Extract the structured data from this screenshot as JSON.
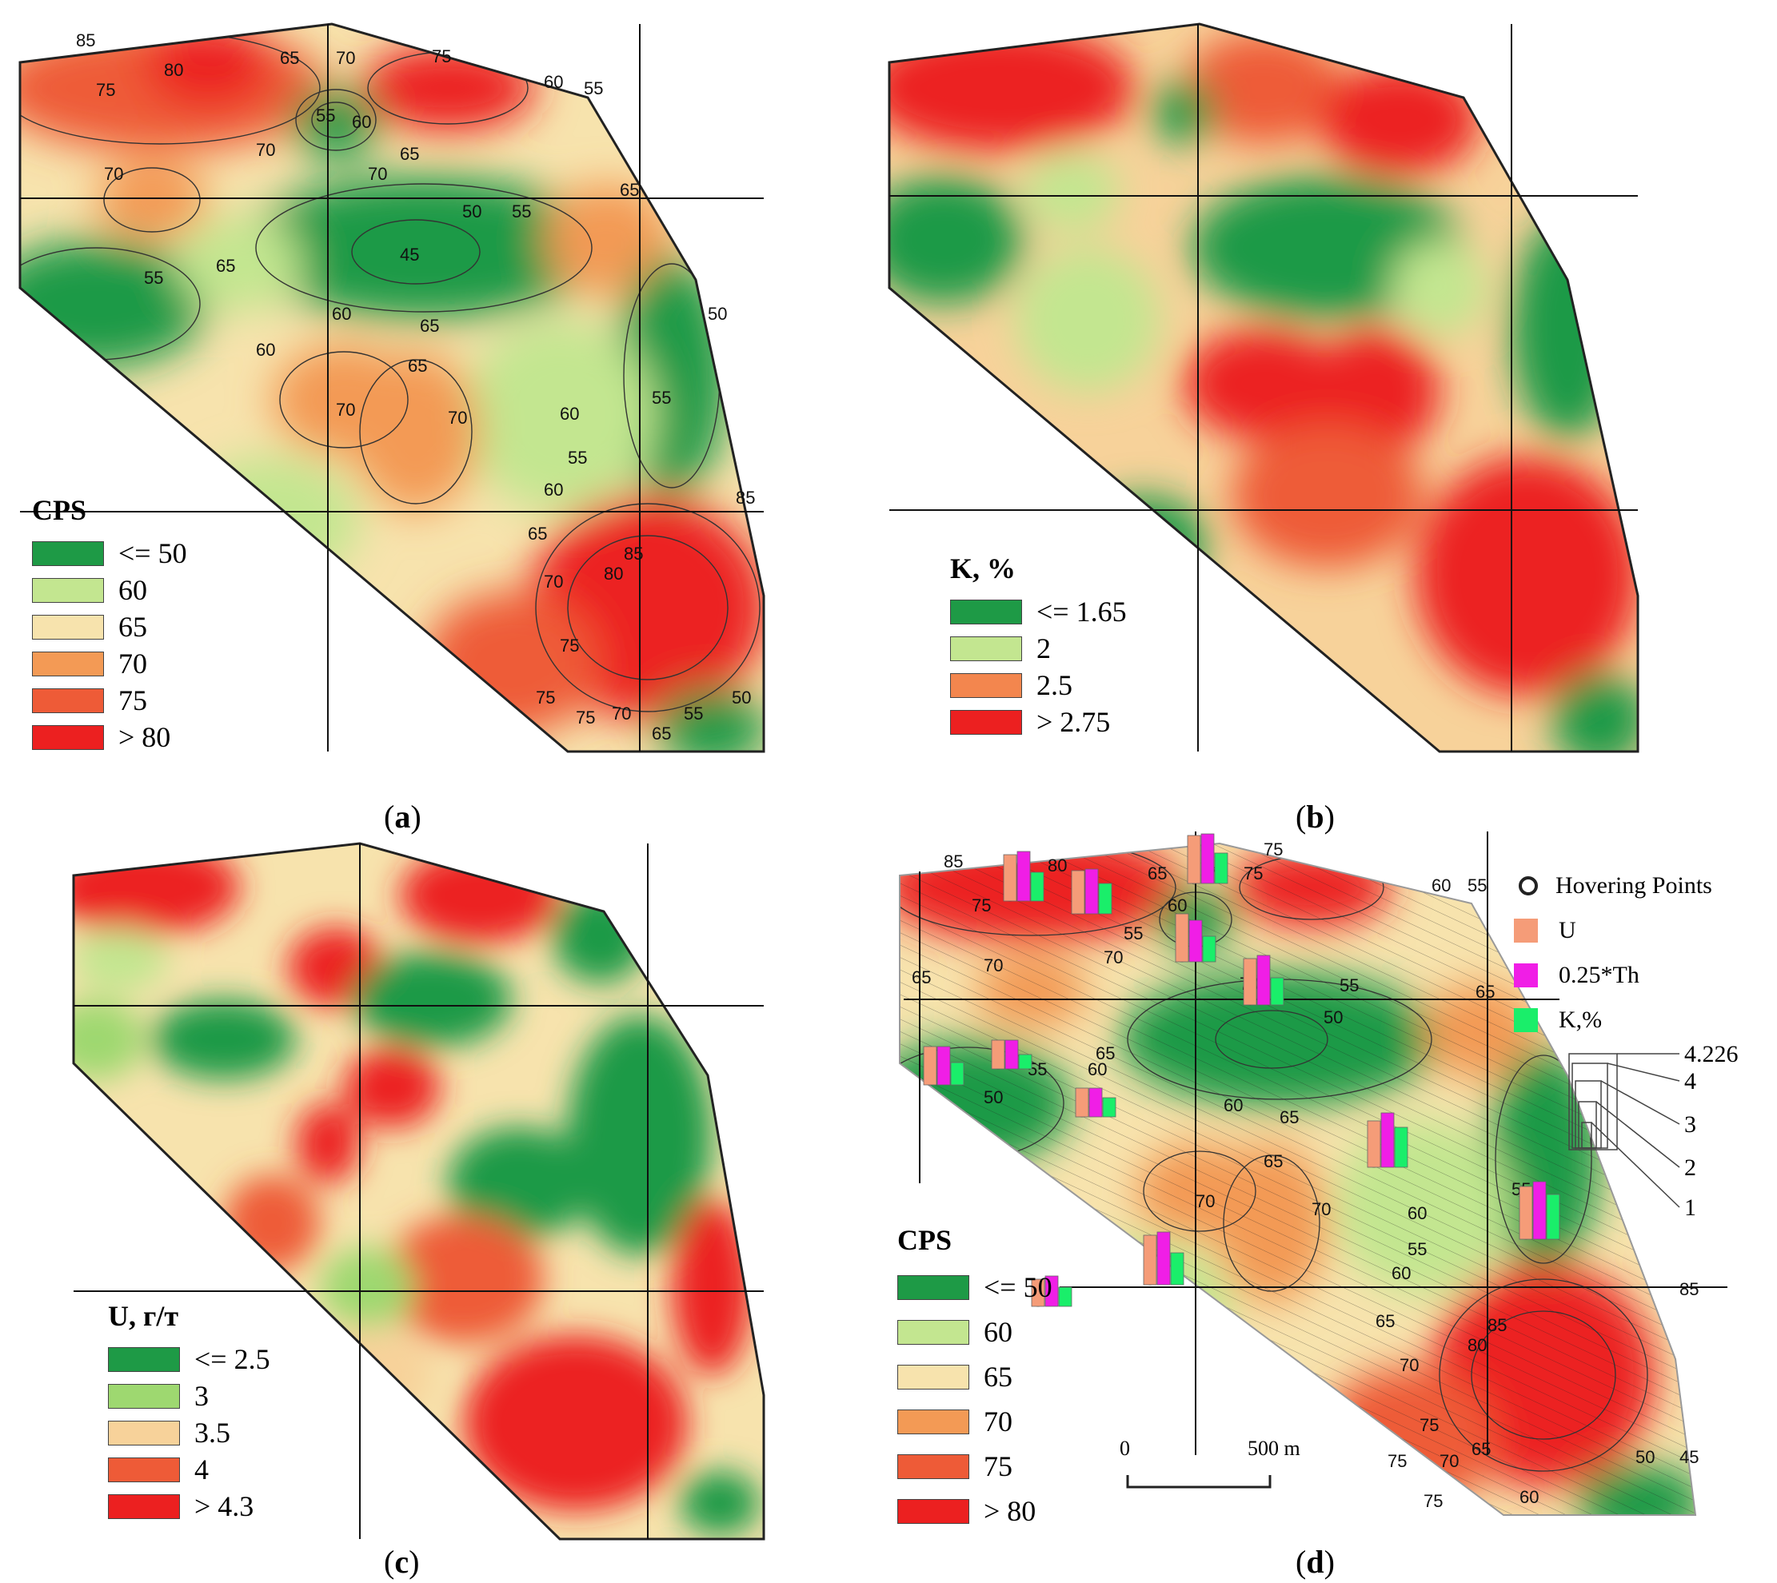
{
  "colors": {
    "lt50": "#1e9a46",
    "c60": "#c3e690",
    "c65": "#f7e3ad",
    "c70": "#f39a55",
    "c75": "#ee5b37",
    "gt80": "#ec2020",
    "u": "#f59c78",
    "th": "#f01ee6",
    "k": "#1aee6a"
  },
  "panels": {
    "a": {
      "caption_letter": "a",
      "legend": {
        "title": "CPS",
        "items": [
          {
            "label": "<= 50",
            "color": "#1e9a46"
          },
          {
            "label": "60",
            "color": "#c3e690"
          },
          {
            "label": "65",
            "color": "#f7e3ad"
          },
          {
            "label": "70",
            "color": "#f39a55"
          },
          {
            "label": "75",
            "color": "#ee5b37"
          },
          {
            "label": "> 80",
            "color": "#ec2020"
          }
        ]
      },
      "contour_labels": [
        "85",
        "80",
        "75",
        "65",
        "70",
        "75",
        "60",
        "55",
        "55",
        "60",
        "70",
        "70",
        "70",
        "65",
        "65",
        "50",
        "55",
        "45",
        "65",
        "55",
        "60",
        "65",
        "60",
        "50",
        "65",
        "70",
        "70",
        "60",
        "55",
        "60",
        "55",
        "65",
        "70",
        "85",
        "80",
        "85",
        "75",
        "75",
        "75",
        "70",
        "65",
        "55",
        "50"
      ]
    },
    "b": {
      "caption_letter": "b",
      "legend": {
        "title": "K, %",
        "items": [
          {
            "label": "<= 1.65",
            "color": "#1e9a46"
          },
          {
            "label": "2",
            "color": "#c3e690"
          },
          {
            "label": "2.5",
            "color": "#f3864e"
          },
          {
            "label": "> 2.75",
            "color": "#ec2020"
          }
        ]
      }
    },
    "c": {
      "caption_letter": "c",
      "legend": {
        "title": "U, г/т",
        "items": [
          {
            "label": "<= 2.5",
            "color": "#1e9a46"
          },
          {
            "label": "3",
            "color": "#9ed870"
          },
          {
            "label": "3.5",
            "color": "#f7d29a"
          },
          {
            "label": "4",
            "color": "#ee5b37"
          },
          {
            "label": "> 4.3",
            "color": "#ec2020"
          }
        ]
      }
    },
    "d": {
      "caption_letter": "d",
      "legend": {
        "title": "CPS",
        "items": [
          {
            "label": "<= 50",
            "color": "#1e9a46"
          },
          {
            "label": "60",
            "color": "#c3e690"
          },
          {
            "label": "65",
            "color": "#f7e3ad"
          },
          {
            "label": "70",
            "color": "#f39a55"
          },
          {
            "label": "75",
            "color": "#ee5b37"
          },
          {
            "label": "> 80",
            "color": "#ec2020"
          }
        ]
      },
      "symbol_legend": {
        "hovering_points": "Hovering Points",
        "u": "U",
        "th": "0.25*Th",
        "k": "K,%",
        "scale_values": [
          "4.226",
          "4",
          "3",
          "2",
          "1"
        ]
      },
      "scale_bar": {
        "start": "0",
        "end": "500 m"
      },
      "contour_labels": [
        "85",
        "75",
        "80",
        "65",
        "70",
        "75",
        "75",
        "60",
        "55",
        "60",
        "55",
        "70",
        "65",
        "70",
        "70",
        "50",
        "55",
        "65",
        "55",
        "50",
        "65",
        "60",
        "60",
        "65",
        "65",
        "70",
        "70",
        "60",
        "55",
        "55",
        "60",
        "65",
        "70",
        "80",
        "85",
        "85",
        "75",
        "75",
        "75",
        "70",
        "65",
        "60",
        "50",
        "45"
      ],
      "bar_groups": [
        {
          "u": 0.58,
          "th": 0.62,
          "k": 0.36
        },
        {
          "u": 0.54,
          "th": 0.56,
          "k": 0.38
        },
        {
          "u": 0.6,
          "th": 0.62,
          "k": 0.38
        },
        {
          "u": 0.58,
          "th": 0.62,
          "k": 0.34
        },
        {
          "u": 0.6,
          "th": 0.52,
          "k": 0.32
        },
        {
          "u": 0.36,
          "th": 0.36,
          "k": 0.18
        },
        {
          "u": 0.48,
          "th": 0.48,
          "k": 0.28
        },
        {
          "u": 0.36,
          "th": 0.36,
          "k": 0.24
        },
        {
          "u": 0.58,
          "th": 0.68,
          "k": 0.5
        },
        {
          "u": 0.66,
          "th": 0.72,
          "k": 0.56
        },
        {
          "u": 0.62,
          "th": 0.66,
          "k": 0.4
        },
        {
          "u": 0.34,
          "th": 0.38,
          "k": 0.24
        }
      ]
    }
  }
}
